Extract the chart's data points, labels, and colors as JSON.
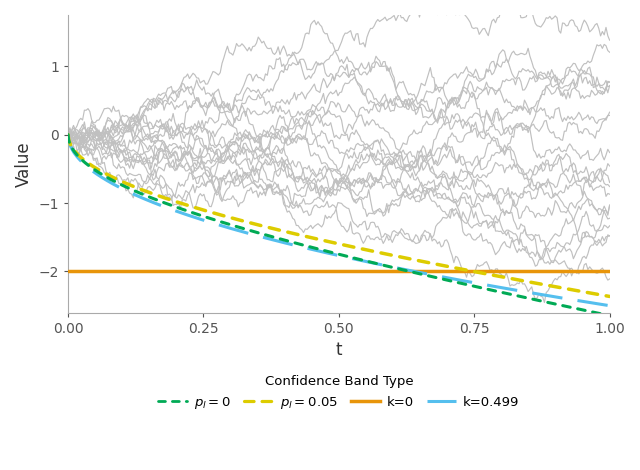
{
  "title": "",
  "xlabel": "t",
  "ylabel": "Value",
  "xlim": [
    0.0,
    1.0
  ],
  "ylim": [
    -2.6,
    1.75
  ],
  "yticks": [
    -2,
    -1,
    0,
    1
  ],
  "xticks": [
    0.0,
    0.25,
    0.5,
    0.75,
    1.0
  ],
  "n_gray_lines": 20,
  "n_steps": 300,
  "seed": 7,
  "background_color": "#ffffff",
  "gray_color": "#c0c0c0",
  "gray_linewidth": 0.85,
  "green_color": "#00aa55",
  "yellow_color": "#ddcc00",
  "orange_color": "#e8950a",
  "blue_color": "#55bfee",
  "k0_linewidth": 2.5,
  "band_linewidth": 2.2,
  "legend_title": "Confidence Band Type",
  "spine_color": "#aaaaaa",
  "tick_color": "#555555"
}
